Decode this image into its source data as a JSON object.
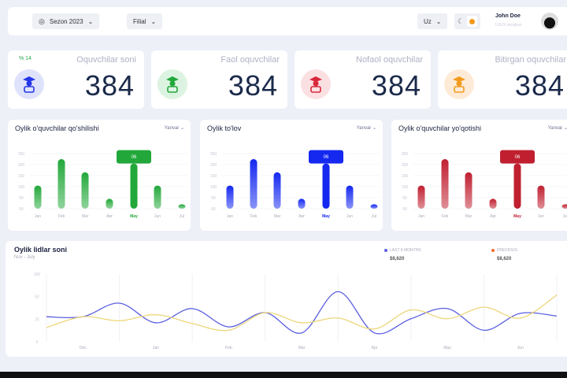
{
  "header": {
    "season": "Sezon 2023",
    "branch": "Filial",
    "language": "Uz",
    "user_name": "John Doe",
    "user_role": "UI/UX designer"
  },
  "stats": [
    {
      "title": "Oquvchilar soni",
      "value": "384",
      "trend": "% 14",
      "color": "#2336e8",
      "bg": "#dfe2fb",
      "icon": "student-icon"
    },
    {
      "title": "Faol oquvchilar",
      "value": "384",
      "color": "#22a83a",
      "bg": "#ddf3e1",
      "icon": "student-active-icon"
    },
    {
      "title": "Nofaol oquvchilar",
      "value": "384",
      "color": "#d8283a",
      "bg": "#fbe0e2",
      "icon": "student-inactive-icon"
    },
    {
      "title": "Bitirgan oquvchilar",
      "value": "384",
      "color": "#f39a1c",
      "bg": "#fdebd7",
      "icon": "graduate-icon"
    }
  ],
  "bar_charts": [
    {
      "title": "Oylik o'quvchilar qo'shilishi",
      "selector": "Yanvar",
      "color": "#22a83a",
      "tooltip": "06"
    },
    {
      "title": "Oylik to'lov",
      "selector": "Yanvar",
      "color": "#1428f0",
      "tooltip": "06"
    },
    {
      "title": "Oylik o'quvchilar yo'qotishi",
      "selector": "Yanvar",
      "color": "#c01f30",
      "tooltip": "06"
    }
  ],
  "line_chart": {
    "title": "Oylik lidlar soni",
    "subtitle": "Nov - July",
    "legend": [
      {
        "label": "LAST 6 MONTHS",
        "value": "$8,620",
        "color": "#5b5fe0"
      },
      {
        "label": "PREVIOUS",
        "value": "$8,620",
        "color": "#f06a2a"
      }
    ]
  },
  "chart_data": [
    {
      "type": "bar",
      "title": "Oylik o'quvchilar qo'shilishi",
      "categories": [
        "Jan",
        "Feb",
        "Mar",
        "Apr",
        "May",
        "Jun",
        "Jul"
      ],
      "values": [
        105,
        225,
        165,
        45,
        205,
        105,
        20
      ],
      "highlight": "May",
      "yticks": [
        "00",
        "50",
        "100",
        "150",
        "200",
        "250"
      ],
      "ylim": [
        0,
        250
      ]
    },
    {
      "type": "bar",
      "title": "Oylik to'lov",
      "categories": [
        "Jan",
        "Feb",
        "Mar",
        "Apr",
        "May",
        "Jun",
        "Jul"
      ],
      "values": [
        105,
        225,
        165,
        45,
        205,
        105,
        20
      ],
      "highlight": "May",
      "yticks": [
        "00",
        "50",
        "100",
        "150",
        "200",
        "250"
      ],
      "ylim": [
        0,
        250
      ]
    },
    {
      "type": "bar",
      "title": "Oylik o'quvchilar yo'qotishi",
      "categories": [
        "Jan",
        "Feb",
        "Mar",
        "Apr",
        "May",
        "Jun",
        "Jul"
      ],
      "values": [
        105,
        225,
        165,
        45,
        205,
        105,
        20
      ],
      "highlight": "May",
      "yticks": [
        "00",
        "50",
        "100",
        "150",
        "200",
        "250"
      ],
      "ylim": [
        0,
        250
      ]
    },
    {
      "type": "line",
      "title": "Oylik lidlar soni",
      "xlabels": [
        "Dec",
        "Jan",
        "Feb",
        "Mar",
        "Apr",
        "May",
        "Jun"
      ],
      "yticks": [
        "0",
        "25",
        "50",
        "100"
      ],
      "ylim": [
        0,
        100
      ],
      "series": [
        {
          "name": "LAST 6 MONTHS",
          "color": "#5b5fe0",
          "values": [
            37,
            37,
            57,
            28,
            49,
            22,
            43,
            13,
            74,
            13,
            34,
            49,
            17,
            42,
            38
          ]
        },
        {
          "name": "PREVIOUS",
          "color": "#ecd67a",
          "values": [
            21,
            37,
            31,
            40,
            27,
            17,
            43,
            28,
            35,
            19,
            47,
            34,
            51,
            35,
            69
          ]
        }
      ]
    }
  ]
}
